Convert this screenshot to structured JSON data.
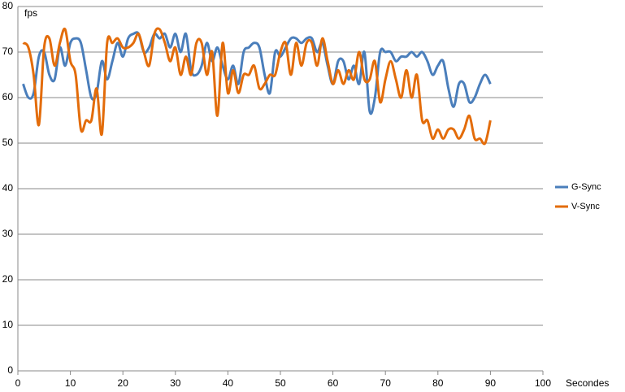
{
  "chart_data": {
    "type": "line",
    "x": [
      1,
      2,
      3,
      4,
      5,
      6,
      7,
      8,
      9,
      10,
      11,
      12,
      13,
      14,
      15,
      16,
      17,
      18,
      19,
      20,
      21,
      22,
      23,
      24,
      25,
      26,
      27,
      28,
      29,
      30,
      31,
      32,
      33,
      34,
      35,
      36,
      37,
      38,
      39,
      40,
      41,
      42,
      43,
      44,
      45,
      46,
      47,
      48,
      49,
      50,
      51,
      52,
      53,
      54,
      55,
      56,
      57,
      58,
      59,
      60,
      61,
      62,
      63,
      64,
      65,
      66,
      67,
      68,
      69,
      70,
      71,
      72,
      73,
      74,
      75,
      76,
      77,
      78,
      79,
      80,
      81,
      82,
      83,
      84,
      85,
      86,
      87,
      88,
      89,
      90
    ],
    "series": [
      {
        "name": "G-Sync",
        "color": "#4a7ebb",
        "values": [
          63,
          60,
          61,
          69,
          70,
          65,
          64,
          71,
          67,
          72,
          73,
          72,
          66,
          60,
          61,
          68,
          64,
          68,
          72,
          69,
          73,
          74,
          74,
          70,
          71,
          74,
          73,
          74,
          71,
          74,
          70,
          74,
          66,
          65,
          67,
          72,
          68,
          71,
          67,
          64,
          67,
          63,
          70,
          71,
          72,
          71,
          65,
          61,
          70,
          69,
          71,
          73,
          73,
          72,
          73,
          73,
          70,
          72,
          67,
          63,
          68,
          68,
          64,
          67,
          63,
          70,
          57,
          60,
          70,
          70,
          70,
          68,
          69,
          69,
          70,
          69,
          70,
          68,
          65,
          67,
          68,
          62,
          58,
          63,
          63,
          59,
          60,
          63,
          65,
          63
        ]
      },
      {
        "name": "V-Sync",
        "color": "#e36c0a",
        "values": [
          72,
          71,
          65,
          54,
          71,
          73,
          67,
          72,
          75,
          68,
          65,
          53,
          55,
          55,
          62,
          52,
          72,
          72,
          73,
          71,
          71,
          72,
          74,
          70,
          67,
          74,
          75,
          72,
          68,
          71,
          65,
          69,
          65,
          72,
          72,
          65,
          70,
          56,
          72,
          61,
          66,
          61,
          65,
          65,
          67,
          62,
          63,
          65,
          65,
          70,
          72,
          65,
          72,
          67,
          72,
          72,
          67,
          73,
          68,
          63,
          66,
          63,
          66,
          64,
          70,
          64,
          64,
          68,
          59,
          64,
          68,
          64,
          60,
          66,
          60,
          65,
          55,
          55,
          51,
          53,
          51,
          53,
          53,
          51,
          53,
          56,
          51,
          51,
          50,
          55
        ]
      }
    ],
    "xlabel": "Secondes",
    "ylabel": "fps",
    "xlim": [
      0,
      100
    ],
    "xticks": [
      0,
      10,
      20,
      30,
      40,
      50,
      60,
      70,
      80,
      90,
      100
    ],
    "ylim": [
      0,
      80
    ],
    "yticks": [
      0,
      10,
      20,
      30,
      40,
      50,
      60,
      70,
      80
    ],
    "grid": true,
    "legend": "right"
  }
}
